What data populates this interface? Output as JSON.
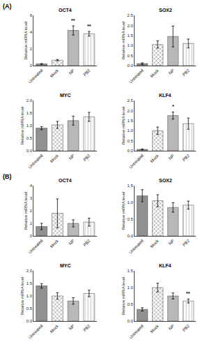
{
  "chart_data": [
    {
      "type": "bar",
      "title": "OCT4",
      "ylabel": "Relative mRNA level",
      "categories": [
        "Untreated",
        "Mock",
        "NP",
        "PB2"
      ],
      "values": [
        0.2,
        0.65,
        4.2,
        3.8
      ],
      "errors": [
        0.05,
        0.08,
        0.55,
        0.28
      ],
      "colors": [
        "#909090",
        "#909090",
        "#b8b8b8",
        "#c8c8c8"
      ],
      "ylim": [
        0,
        6
      ],
      "yticks": [
        0,
        2,
        4,
        6
      ],
      "grid": false,
      "annotations": [
        {
          "text": "(A)"
        },
        {
          "category": "NP",
          "text": "**"
        },
        {
          "category": "PB2",
          "text": "**"
        }
      ]
    },
    {
      "type": "bar",
      "title": "SOX2",
      "ylabel": "Relative mRNA level",
      "categories": [
        "Untreated",
        "Mock",
        "NP",
        "PB2"
      ],
      "values": [
        0.1,
        1.05,
        1.45,
        1.1
      ],
      "errors": [
        0.04,
        0.18,
        0.52,
        0.22
      ],
      "colors": [
        "#909090",
        "#909090",
        "#b8b8b8",
        "#c8c8c8"
      ],
      "ylim": [
        0,
        2.5
      ],
      "yticks": [
        {
          "value": 0.0,
          "label": "0.0"
        },
        0.5,
        {
          "value": 1.0,
          "label": "1.0"
        },
        1.5,
        {
          "value": 2.0,
          "label": "2.0"
        },
        2.5
      ],
      "grid": false
    },
    {
      "type": "bar",
      "title": "MYC",
      "ylabel": "Relative mRNA level",
      "categories": [
        "Untreated",
        "Mock",
        "NP",
        "PB2"
      ],
      "values": [
        0.9,
        1.03,
        1.2,
        1.35
      ],
      "errors": [
        0.06,
        0.14,
        0.18,
        0.18
      ],
      "colors": [
        "#909090",
        "#909090",
        "#b8b8b8",
        "#c8c8c8"
      ],
      "ylim": [
        0,
        2.0
      ],
      "yticks": [
        {
          "value": 0.0,
          "label": "0.0"
        },
        0.5,
        {
          "value": 1.0,
          "label": "1.0"
        },
        1.5,
        {
          "value": 2.0,
          "label": "2.0"
        }
      ],
      "grid": false
    },
    {
      "type": "bar",
      "title": "KLF4",
      "ylabel": "Relative mRNA level",
      "categories": [
        "Untreated",
        "Mock",
        "NP",
        "PB2"
      ],
      "values": [
        0.07,
        1.0,
        1.75,
        1.35
      ],
      "errors": [
        0.02,
        0.18,
        0.18,
        0.28
      ],
      "colors": [
        "#909090",
        "#909090",
        "#b8b8b8",
        "#c8c8c8"
      ],
      "ylim": [
        0,
        2.5
      ],
      "yticks": [
        {
          "value": 0.0,
          "label": "0.0"
        },
        0.5,
        {
          "value": 1.0,
          "label": "1.0"
        },
        1.5,
        {
          "value": 2.0,
          "label": "2.0"
        },
        2.5
      ],
      "grid": false,
      "annotations": [
        {
          "category": "NP",
          "text": "*"
        }
      ]
    },
    {
      "type": "bar",
      "title": "OCT4",
      "ylabel": "Relative mRNA level",
      "categories": [
        "Untreated",
        "Mock",
        "NP",
        "PB2"
      ],
      "values": [
        0.75,
        1.8,
        1.0,
        1.1
      ],
      "errors": [
        0.25,
        1.15,
        0.28,
        0.32
      ],
      "colors": [
        "#909090",
        "#909090",
        "#b8b8b8",
        "#c8c8c8"
      ],
      "ylim": [
        0,
        4
      ],
      "yticks": [
        0,
        1,
        2,
        3,
        4
      ],
      "grid": false,
      "annotations": [
        {
          "text": "(B)"
        }
      ]
    },
    {
      "type": "bar",
      "title": "SOX2",
      "ylabel": "Relative mRNA level",
      "categories": [
        "Untreated",
        "Mock",
        "NP",
        "PB2"
      ],
      "values": [
        1.2,
        1.05,
        0.85,
        0.92
      ],
      "errors": [
        0.18,
        0.18,
        0.14,
        0.12
      ],
      "colors": [
        "#909090",
        "#909090",
        "#b8b8b8",
        "#c8c8c8"
      ],
      "ylim": [
        0,
        1.5
      ],
      "yticks": [
        {
          "value": 0.0,
          "label": "0.0"
        },
        0.5,
        {
          "value": 1.0,
          "label": "1.0"
        },
        1.5
      ],
      "grid": false
    },
    {
      "type": "bar",
      "title": "MYC",
      "ylabel": "Relative mRNA level",
      "categories": [
        "Untreated",
        "Mock",
        "NP",
        "PB2"
      ],
      "values": [
        1.4,
        1.0,
        0.8,
        1.1
      ],
      "errors": [
        0.09,
        0.13,
        0.13,
        0.13
      ],
      "colors": [
        "#909090",
        "#909090",
        "#b8b8b8",
        "#c8c8c8"
      ],
      "ylim": [
        0,
        2.0
      ],
      "yticks": [
        {
          "value": 0.0,
          "label": "0.0"
        },
        0.5,
        {
          "value": 1.0,
          "label": "1.0"
        },
        1.5,
        {
          "value": 2.0,
          "label": "2.0"
        }
      ],
      "grid": false
    },
    {
      "type": "bar",
      "title": "KLF4",
      "ylabel": "Relative mRNA level",
      "categories": [
        "Untreated",
        "Mock",
        "NP",
        "PB2"
      ],
      "values": [
        0.35,
        1.0,
        0.75,
        0.6
      ],
      "errors": [
        0.05,
        0.13,
        0.09,
        0.06
      ],
      "colors": [
        "#909090",
        "#909090",
        "#b8b8b8",
        "#c8c8c8"
      ],
      "ylim": [
        0,
        1.5
      ],
      "yticks": [
        {
          "value": 0.0,
          "label": "0.0"
        },
        0.5,
        {
          "value": 1.0,
          "label": "1.0"
        },
        1.5
      ],
      "grid": false,
      "annotations": [
        {
          "category": "PB2",
          "text": "**"
        }
      ]
    }
  ]
}
